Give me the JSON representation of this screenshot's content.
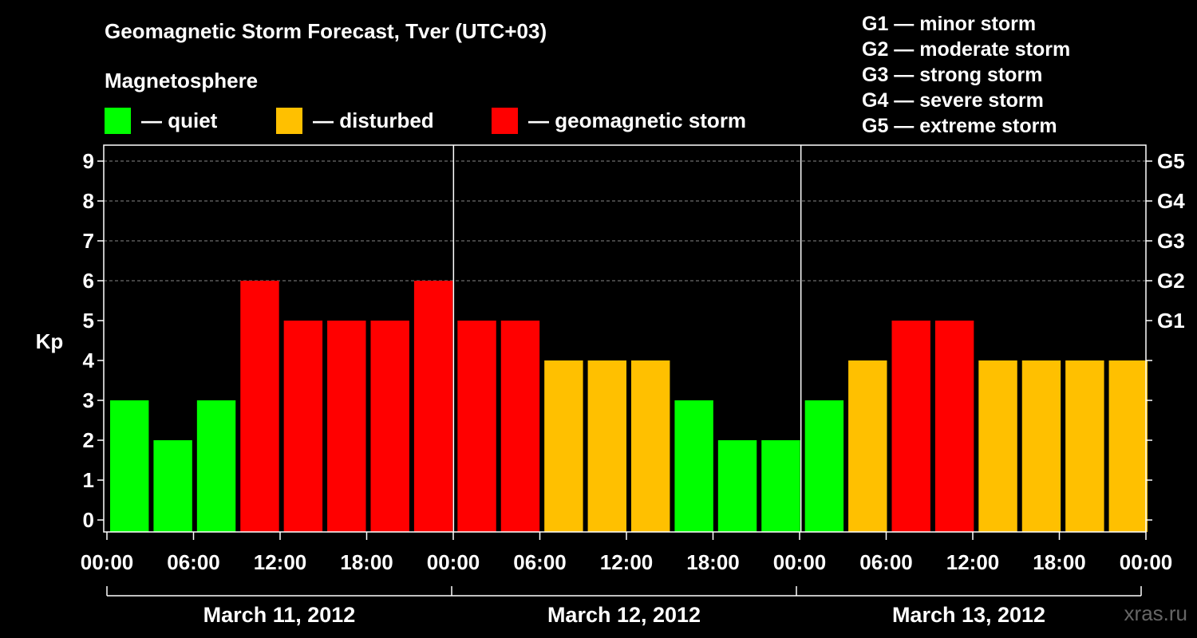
{
  "header": {
    "title": "Geomagnetic Storm Forecast, Tver (UTC+03)",
    "subtitle": "Magnetosphere"
  },
  "legend": [
    {
      "label": "— quiet",
      "color": "#00ff00"
    },
    {
      "label": "— disturbed",
      "color": "#ffc000"
    },
    {
      "label": "— geomagnetic storm",
      "color": "#ff0000"
    }
  ],
  "storm_scale": [
    "G1 — minor storm",
    "G2 — moderate storm",
    "G3 — strong storm",
    "G4 — severe storm",
    "G5 — extreme storm"
  ],
  "watermark": "xras.ru",
  "chart_data": {
    "type": "bar",
    "title": "Geomagnetic Storm Forecast, Tver (UTC+03)",
    "ylabel": "Kp",
    "ylim": [
      0,
      9
    ],
    "yticks": [
      "0",
      "1",
      "2",
      "3",
      "4",
      "5",
      "6",
      "7",
      "8",
      "9"
    ],
    "right_axis_labels": [
      {
        "kp": 5,
        "label": "G1"
      },
      {
        "kp": 6,
        "label": "G2"
      },
      {
        "kp": 7,
        "label": "G3"
      },
      {
        "kp": 8,
        "label": "G4"
      },
      {
        "kp": 9,
        "label": "G5"
      }
    ],
    "days": [
      "March 11, 2012",
      "March 12, 2012",
      "March 13, 2012"
    ],
    "xtick_labels": [
      "00:00",
      "06:00",
      "12:00",
      "18:00",
      "00:00",
      "06:00",
      "12:00",
      "18:00",
      "00:00",
      "06:00",
      "12:00",
      "18:00",
      "00:00"
    ],
    "interval_hours": 3,
    "values": [
      3,
      2,
      3,
      6,
      5,
      5,
      5,
      6,
      5,
      5,
      4,
      4,
      4,
      3,
      2,
      2,
      3,
      4,
      5,
      5,
      4,
      4,
      4,
      4
    ],
    "colors": {
      "quiet": "#00ff00",
      "disturbed": "#ffc000",
      "storm": "#ff0000"
    },
    "thresholds": {
      "disturbed_min": 4,
      "storm_min": 5
    },
    "grid": true
  }
}
